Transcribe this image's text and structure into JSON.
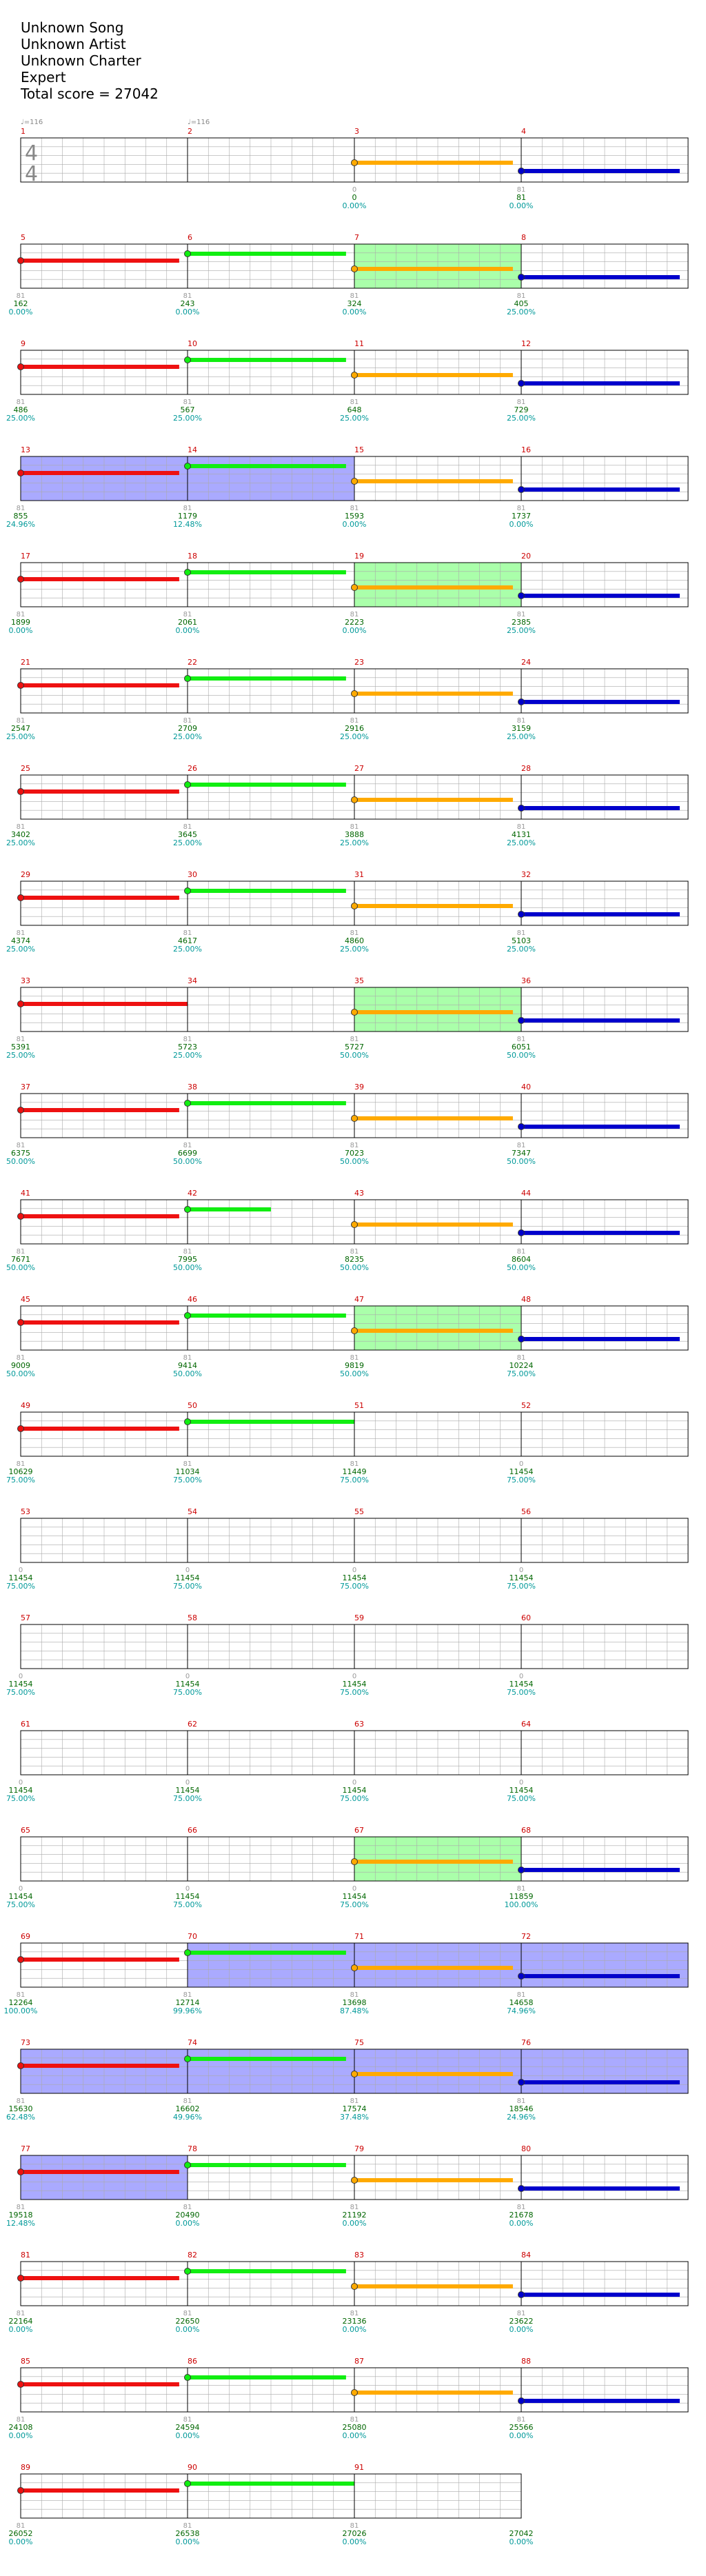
{
  "header": {
    "song": "Unknown Song",
    "artist": "Unknown Artist",
    "charter": "Unknown Charter",
    "difficulty": "Expert",
    "total_score": "Total score = 27042"
  },
  "tempo_markers": [
    {
      "measure": 1,
      "text": "♩=116"
    },
    {
      "measure": 2,
      "text": "♩=116"
    }
  ],
  "time_signature": {
    "numerator": "4",
    "denominator": "4"
  },
  "colors": {
    "measure_number": "#cc0000",
    "grid_line": "#aaaaaa",
    "gray_label": "#999999",
    "score": "#006600",
    "percent": "#009999",
    "red": "#ee1111",
    "green": "#11ee11",
    "orange": "#ffaa00",
    "blue": "#0000cc",
    "star_power": "#aaffaa",
    "solo": "#aaaaff"
  },
  "measures": [
    {
      "n": 1,
      "notes": [],
      "solo": false,
      "sp": false,
      "mult": "",
      "score": "",
      "pct": ""
    },
    {
      "n": 2,
      "notes": [],
      "solo": false,
      "sp": false,
      "mult": "",
      "score": "",
      "pct": ""
    },
    {
      "n": 3,
      "notes": [
        [
          "orange",
          0,
          0.95
        ]
      ],
      "solo": false,
      "sp": false,
      "mult": "0",
      "score": "0",
      "pct": "0.00%"
    },
    {
      "n": 4,
      "notes": [
        [
          "blue",
          0,
          0.95
        ]
      ],
      "solo": false,
      "sp": false,
      "mult": "81",
      "score": "81",
      "pct": "0.00%"
    },
    {
      "n": 5,
      "notes": [
        [
          "red",
          0,
          0.95
        ]
      ],
      "solo": false,
      "sp": false,
      "mult": "81",
      "score": "162",
      "pct": "0.00%"
    },
    {
      "n": 6,
      "notes": [
        [
          "green",
          0,
          0.95
        ]
      ],
      "solo": false,
      "sp": false,
      "mult": "81",
      "score": "243",
      "pct": "0.00%"
    },
    {
      "n": 7,
      "notes": [
        [
          "orange",
          0,
          0.95
        ]
      ],
      "solo": false,
      "sp": true,
      "mult": "81",
      "score": "324",
      "pct": "0.00%"
    },
    {
      "n": 8,
      "notes": [
        [
          "blue",
          0,
          0.95
        ]
      ],
      "solo": false,
      "sp": false,
      "mult": "81",
      "score": "405",
      "pct": "25.00%"
    },
    {
      "n": 9,
      "notes": [
        [
          "red",
          0,
          0.95
        ]
      ],
      "solo": false,
      "sp": false,
      "mult": "81",
      "score": "486",
      "pct": "25.00%"
    },
    {
      "n": 10,
      "notes": [
        [
          "green",
          0,
          0.95
        ]
      ],
      "solo": false,
      "sp": false,
      "mult": "81",
      "score": "567",
      "pct": "25.00%"
    },
    {
      "n": 11,
      "notes": [
        [
          "orange",
          0,
          0.95
        ]
      ],
      "solo": false,
      "sp": false,
      "mult": "81",
      "score": "648",
      "pct": "25.00%"
    },
    {
      "n": 12,
      "notes": [
        [
          "blue",
          0,
          0.95
        ]
      ],
      "solo": false,
      "sp": false,
      "mult": "81",
      "score": "729",
      "pct": "25.00%"
    },
    {
      "n": 13,
      "notes": [
        [
          "red",
          0,
          0.95
        ]
      ],
      "solo": true,
      "sp": false,
      "mult": "81",
      "score": "855",
      "pct": "24.96%"
    },
    {
      "n": 14,
      "notes": [
        [
          "green",
          0,
          0.95
        ]
      ],
      "solo": true,
      "sp": false,
      "mult": "81",
      "score": "1179",
      "pct": "12.48%"
    },
    {
      "n": 15,
      "notes": [
        [
          "orange",
          0,
          0.95
        ]
      ],
      "solo": false,
      "sp": false,
      "mult": "81",
      "score": "1593",
      "pct": "0.00%"
    },
    {
      "n": 16,
      "notes": [
        [
          "blue",
          0,
          0.95
        ]
      ],
      "solo": false,
      "sp": false,
      "mult": "81",
      "score": "1737",
      "pct": "0.00%"
    },
    {
      "n": 17,
      "notes": [
        [
          "red",
          0,
          0.95
        ]
      ],
      "solo": false,
      "sp": false,
      "mult": "81",
      "score": "1899",
      "pct": "0.00%"
    },
    {
      "n": 18,
      "notes": [
        [
          "green",
          0,
          0.95
        ]
      ],
      "solo": false,
      "sp": false,
      "mult": "81",
      "score": "2061",
      "pct": "0.00%"
    },
    {
      "n": 19,
      "notes": [
        [
          "orange",
          0,
          0.95
        ]
      ],
      "solo": false,
      "sp": true,
      "mult": "81",
      "score": "2223",
      "pct": "0.00%"
    },
    {
      "n": 20,
      "notes": [
        [
          "blue",
          0,
          0.95
        ]
      ],
      "solo": false,
      "sp": false,
      "mult": "81",
      "score": "2385",
      "pct": "25.00%"
    },
    {
      "n": 21,
      "notes": [
        [
          "red",
          0,
          0.95
        ]
      ],
      "solo": false,
      "sp": false,
      "mult": "81",
      "score": "2547",
      "pct": "25.00%"
    },
    {
      "n": 22,
      "notes": [
        [
          "green",
          0,
          0.95
        ]
      ],
      "solo": false,
      "sp": false,
      "mult": "81",
      "score": "2709",
      "pct": "25.00%"
    },
    {
      "n": 23,
      "notes": [
        [
          "orange",
          0,
          0.95
        ]
      ],
      "solo": false,
      "sp": false,
      "mult": "81",
      "score": "2916",
      "pct": "25.00%"
    },
    {
      "n": 24,
      "notes": [
        [
          "blue",
          0,
          0.95
        ]
      ],
      "solo": false,
      "sp": false,
      "mult": "81",
      "score": "3159",
      "pct": "25.00%"
    },
    {
      "n": 25,
      "notes": [
        [
          "red",
          0,
          0.95
        ]
      ],
      "solo": false,
      "sp": false,
      "mult": "81",
      "score": "3402",
      "pct": "25.00%"
    },
    {
      "n": 26,
      "notes": [
        [
          "green",
          0,
          0.95
        ]
      ],
      "solo": false,
      "sp": false,
      "mult": "81",
      "score": "3645",
      "pct": "25.00%"
    },
    {
      "n": 27,
      "notes": [
        [
          "orange",
          0,
          0.95
        ]
      ],
      "solo": false,
      "sp": false,
      "mult": "81",
      "score": "3888",
      "pct": "25.00%"
    },
    {
      "n": 28,
      "notes": [
        [
          "blue",
          0,
          0.95
        ]
      ],
      "solo": false,
      "sp": false,
      "mult": "81",
      "score": "4131",
      "pct": "25.00%"
    },
    {
      "n": 29,
      "notes": [
        [
          "red",
          0,
          0.95
        ]
      ],
      "solo": false,
      "sp": false,
      "mult": "81",
      "score": "4374",
      "pct": "25.00%"
    },
    {
      "n": 30,
      "notes": [
        [
          "green",
          0,
          0.95
        ]
      ],
      "solo": false,
      "sp": false,
      "mult": "81",
      "score": "4617",
      "pct": "25.00%"
    },
    {
      "n": 31,
      "notes": [
        [
          "orange",
          0,
          0.95
        ]
      ],
      "solo": false,
      "sp": false,
      "mult": "81",
      "score": "4860",
      "pct": "25.00%"
    },
    {
      "n": 32,
      "notes": [
        [
          "blue",
          0,
          0.95
        ]
      ],
      "solo": false,
      "sp": false,
      "mult": "81",
      "score": "5103",
      "pct": "25.00%"
    },
    {
      "n": 33,
      "notes": [
        [
          "red",
          0,
          1.0
        ]
      ],
      "solo": false,
      "sp": false,
      "mult": "81",
      "score": "5391",
      "pct": "25.00%"
    },
    {
      "n": 34,
      "notes": [],
      "solo": false,
      "sp": false,
      "mult": "81",
      "score": "5723",
      "pct": "25.00%"
    },
    {
      "n": 35,
      "notes": [
        [
          "orange",
          0,
          0.95
        ]
      ],
      "solo": false,
      "sp": true,
      "mult": "81",
      "score": "5727",
      "pct": "50.00%"
    },
    {
      "n": 36,
      "notes": [
        [
          "blue",
          0,
          0.95
        ]
      ],
      "solo": false,
      "sp": false,
      "mult": "81",
      "score": "6051",
      "pct": "50.00%"
    },
    {
      "n": 37,
      "notes": [
        [
          "red",
          0,
          0.95
        ]
      ],
      "solo": false,
      "sp": false,
      "mult": "81",
      "score": "6375",
      "pct": "50.00%"
    },
    {
      "n": 38,
      "notes": [
        [
          "green",
          0,
          0.95
        ]
      ],
      "solo": false,
      "sp": false,
      "mult": "81",
      "score": "6699",
      "pct": "50.00%"
    },
    {
      "n": 39,
      "notes": [
        [
          "orange",
          0,
          0.95
        ]
      ],
      "solo": false,
      "sp": false,
      "mult": "81",
      "score": "7023",
      "pct": "50.00%"
    },
    {
      "n": 40,
      "notes": [
        [
          "blue",
          0,
          0.95
        ]
      ],
      "solo": false,
      "sp": false,
      "mult": "81",
      "score": "7347",
      "pct": "50.00%"
    },
    {
      "n": 41,
      "notes": [
        [
          "red",
          0,
          0.95
        ]
      ],
      "solo": false,
      "sp": false,
      "mult": "81",
      "score": "7671",
      "pct": "50.00%"
    },
    {
      "n": 42,
      "notes": [
        [
          "green",
          0,
          0.5
        ]
      ],
      "solo": false,
      "sp": false,
      "mult": "81",
      "score": "7995",
      "pct": "50.00%"
    },
    {
      "n": 43,
      "notes": [
        [
          "orange",
          0,
          0.95
        ]
      ],
      "solo": false,
      "sp": false,
      "mult": "81",
      "score": "8235",
      "pct": "50.00%"
    },
    {
      "n": 44,
      "notes": [
        [
          "blue",
          0,
          0.95
        ]
      ],
      "solo": false,
      "sp": false,
      "mult": "81",
      "score": "8604",
      "pct": "50.00%"
    },
    {
      "n": 45,
      "notes": [
        [
          "red",
          0,
          0.95
        ]
      ],
      "solo": false,
      "sp": false,
      "mult": "81",
      "score": "9009",
      "pct": "50.00%"
    },
    {
      "n": 46,
      "notes": [
        [
          "green",
          0,
          0.95
        ]
      ],
      "solo": false,
      "sp": false,
      "mult": "81",
      "score": "9414",
      "pct": "50.00%"
    },
    {
      "n": 47,
      "notes": [
        [
          "orange",
          0,
          0.95
        ]
      ],
      "solo": false,
      "sp": true,
      "mult": "81",
      "score": "9819",
      "pct": "50.00%"
    },
    {
      "n": 48,
      "notes": [
        [
          "blue",
          0,
          0.95
        ]
      ],
      "solo": false,
      "sp": false,
      "mult": "81",
      "score": "10224",
      "pct": "75.00%"
    },
    {
      "n": 49,
      "notes": [
        [
          "red",
          0,
          0.95
        ]
      ],
      "solo": false,
      "sp": false,
      "mult": "81",
      "score": "10629",
      "pct": "75.00%"
    },
    {
      "n": 50,
      "notes": [
        [
          "green",
          0,
          1.0
        ]
      ],
      "solo": false,
      "sp": false,
      "mult": "81",
      "score": "11034",
      "pct": "75.00%"
    },
    {
      "n": 51,
      "notes": [],
      "solo": false,
      "sp": false,
      "mult": "81",
      "score": "11449",
      "pct": "75.00%"
    },
    {
      "n": 52,
      "notes": [],
      "solo": false,
      "sp": false,
      "mult": "0",
      "score": "11454",
      "pct": "75.00%"
    },
    {
      "n": 53,
      "notes": [],
      "solo": false,
      "sp": false,
      "mult": "0",
      "score": "11454",
      "pct": "75.00%"
    },
    {
      "n": 54,
      "notes": [],
      "solo": false,
      "sp": false,
      "mult": "0",
      "score": "11454",
      "pct": "75.00%"
    },
    {
      "n": 55,
      "notes": [],
      "solo": false,
      "sp": false,
      "mult": "0",
      "score": "11454",
      "pct": "75.00%"
    },
    {
      "n": 56,
      "notes": [],
      "solo": false,
      "sp": false,
      "mult": "0",
      "score": "11454",
      "pct": "75.00%"
    },
    {
      "n": 57,
      "notes": [],
      "solo": false,
      "sp": false,
      "mult": "0",
      "score": "11454",
      "pct": "75.00%"
    },
    {
      "n": 58,
      "notes": [],
      "solo": false,
      "sp": false,
      "mult": "0",
      "score": "11454",
      "pct": "75.00%"
    },
    {
      "n": 59,
      "notes": [],
      "solo": false,
      "sp": false,
      "mult": "0",
      "score": "11454",
      "pct": "75.00%"
    },
    {
      "n": 60,
      "notes": [],
      "solo": false,
      "sp": false,
      "mult": "0",
      "score": "11454",
      "pct": "75.00%"
    },
    {
      "n": 61,
      "notes": [],
      "solo": false,
      "sp": false,
      "mult": "0",
      "score": "11454",
      "pct": "75.00%"
    },
    {
      "n": 62,
      "notes": [],
      "solo": false,
      "sp": false,
      "mult": "0",
      "score": "11454",
      "pct": "75.00%"
    },
    {
      "n": 63,
      "notes": [],
      "solo": false,
      "sp": false,
      "mult": "0",
      "score": "11454",
      "pct": "75.00%"
    },
    {
      "n": 64,
      "notes": [],
      "solo": false,
      "sp": false,
      "mult": "0",
      "score": "11454",
      "pct": "75.00%"
    },
    {
      "n": 65,
      "notes": [],
      "solo": false,
      "sp": false,
      "mult": "0",
      "score": "11454",
      "pct": "75.00%"
    },
    {
      "n": 66,
      "notes": [],
      "solo": false,
      "sp": false,
      "mult": "0",
      "score": "11454",
      "pct": "75.00%"
    },
    {
      "n": 67,
      "notes": [
        [
          "orange",
          0,
          0.95
        ]
      ],
      "solo": false,
      "sp": true,
      "mult": "0",
      "score": "11454",
      "pct": "75.00%"
    },
    {
      "n": 68,
      "notes": [
        [
          "blue",
          0,
          0.95
        ]
      ],
      "solo": false,
      "sp": false,
      "mult": "81",
      "score": "11859",
      "pct": "100.00%"
    },
    {
      "n": 69,
      "notes": [
        [
          "red",
          0,
          0.95
        ]
      ],
      "solo": false,
      "sp": false,
      "mult": "81",
      "score": "12264",
      "pct": "100.00%"
    },
    {
      "n": 70,
      "notes": [
        [
          "green",
          0,
          0.95
        ]
      ],
      "solo": true,
      "sp": false,
      "mult": "81",
      "score": "12714",
      "pct": "99.96%"
    },
    {
      "n": 71,
      "notes": [
        [
          "orange",
          0,
          0.95
        ]
      ],
      "solo": true,
      "sp": false,
      "mult": "81",
      "score": "13698",
      "pct": "87.48%"
    },
    {
      "n": 72,
      "notes": [
        [
          "blue",
          0,
          0.95
        ]
      ],
      "solo": true,
      "sp": false,
      "mult": "81",
      "score": "14658",
      "pct": "74.96%"
    },
    {
      "n": 73,
      "notes": [
        [
          "red",
          0,
          0.95
        ]
      ],
      "solo": true,
      "sp": false,
      "mult": "81",
      "score": "15630",
      "pct": "62.48%"
    },
    {
      "n": 74,
      "notes": [
        [
          "green",
          0,
          0.95
        ]
      ],
      "solo": true,
      "sp": false,
      "mult": "81",
      "score": "16602",
      "pct": "49.96%"
    },
    {
      "n": 75,
      "notes": [
        [
          "orange",
          0,
          0.95
        ]
      ],
      "solo": true,
      "sp": false,
      "mult": "81",
      "score": "17574",
      "pct": "37.48%"
    },
    {
      "n": 76,
      "notes": [
        [
          "blue",
          0,
          0.95
        ]
      ],
      "solo": true,
      "sp": false,
      "mult": "81",
      "score": "18546",
      "pct": "24.96%"
    },
    {
      "n": 77,
      "notes": [
        [
          "red",
          0,
          0.95
        ]
      ],
      "solo": true,
      "sp": false,
      "mult": "81",
      "score": "19518",
      "pct": "12.48%"
    },
    {
      "n": 78,
      "notes": [
        [
          "green",
          0,
          0.95
        ]
      ],
      "solo": false,
      "sp": false,
      "mult": "81",
      "score": "20490",
      "pct": "0.00%"
    },
    {
      "n": 79,
      "notes": [
        [
          "orange",
          0,
          0.95
        ]
      ],
      "solo": false,
      "sp": false,
      "mult": "81",
      "score": "21192",
      "pct": "0.00%"
    },
    {
      "n": 80,
      "notes": [
        [
          "blue",
          0,
          0.95
        ]
      ],
      "solo": false,
      "sp": false,
      "mult": "81",
      "score": "21678",
      "pct": "0.00%"
    },
    {
      "n": 81,
      "notes": [
        [
          "red",
          0,
          0.95
        ]
      ],
      "solo": false,
      "sp": false,
      "mult": "81",
      "score": "22164",
      "pct": "0.00%"
    },
    {
      "n": 82,
      "notes": [
        [
          "green",
          0,
          0.95
        ]
      ],
      "solo": false,
      "sp": false,
      "mult": "81",
      "score": "22650",
      "pct": "0.00%"
    },
    {
      "n": 83,
      "notes": [
        [
          "orange",
          0,
          0.95
        ]
      ],
      "solo": false,
      "sp": false,
      "mult": "81",
      "score": "23136",
      "pct": "0.00%"
    },
    {
      "n": 84,
      "notes": [
        [
          "blue",
          0,
          0.95
        ]
      ],
      "solo": false,
      "sp": false,
      "mult": "81",
      "score": "23622",
      "pct": "0.00%"
    },
    {
      "n": 85,
      "notes": [
        [
          "red",
          0,
          0.95
        ]
      ],
      "solo": false,
      "sp": false,
      "mult": "81",
      "score": "24108",
      "pct": "0.00%"
    },
    {
      "n": 86,
      "notes": [
        [
          "green",
          0,
          0.95
        ]
      ],
      "solo": false,
      "sp": false,
      "mult": "81",
      "score": "24594",
      "pct": "0.00%"
    },
    {
      "n": 87,
      "notes": [
        [
          "orange",
          0,
          0.95
        ]
      ],
      "solo": false,
      "sp": false,
      "mult": "81",
      "score": "25080",
      "pct": "0.00%"
    },
    {
      "n": 88,
      "notes": [
        [
          "blue",
          0,
          0.95
        ]
      ],
      "solo": false,
      "sp": false,
      "mult": "81",
      "score": "25566",
      "pct": "0.00%"
    },
    {
      "n": 89,
      "notes": [
        [
          "red",
          0,
          0.95
        ]
      ],
      "solo": false,
      "sp": false,
      "mult": "81",
      "score": "26052",
      "pct": "0.00%"
    },
    {
      "n": 90,
      "notes": [
        [
          "green",
          0,
          1.0
        ]
      ],
      "solo": false,
      "sp": false,
      "mult": "81",
      "score": "26538",
      "pct": "0.00%"
    },
    {
      "n": 91,
      "notes": [],
      "solo": false,
      "sp": false,
      "mult": "81",
      "score": "27026",
      "pct": "0.00%"
    }
  ],
  "end_label": {
    "mult": "",
    "score": "27042",
    "pct": "0.00%"
  }
}
